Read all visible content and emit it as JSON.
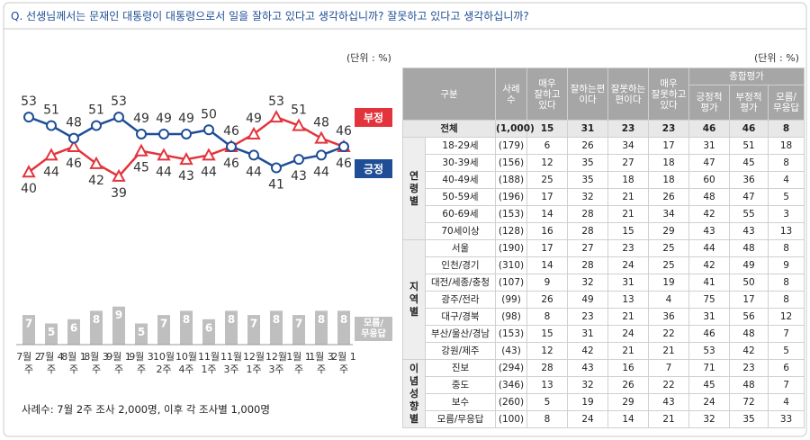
{
  "question": "Q. 선생님께서는 문재인 대통령이 대통령으로서 일을 잘하고 있다고 생각하십니까? 잘못하고 있다고 생각하십니까?",
  "chart_data": [
    {
      "type": "line",
      "unit": "(단위 : %)",
      "categories": [
        "7월 2주",
        "7월 4주",
        "8월 1주",
        "8월 3주",
        "9월 1주",
        "9월 3주",
        "10월 2주",
        "10월 4주",
        "11월 1주",
        "11월 3주",
        "12월 1주",
        "12월 3주",
        "1월 1주",
        "1월 3주",
        "2월 1주"
      ],
      "series": [
        {
          "name": "부정",
          "color": "#e3343c",
          "values": [
            40,
            44,
            46,
            42,
            39,
            45,
            44,
            43,
            44,
            46,
            49,
            53,
            51,
            48,
            46
          ]
        },
        {
          "name": "긍정",
          "color": "#1f4e96",
          "values": [
            53,
            51,
            48,
            51,
            53,
            49,
            49,
            49,
            50,
            46,
            44,
            41,
            43,
            44,
            46
          ]
        }
      ],
      "ylim": [
        36,
        59
      ]
    },
    {
      "type": "bar",
      "name": "모름/\n무응답",
      "color": "#bfbfbf",
      "values": [
        7,
        5,
        6,
        8,
        9,
        5,
        7,
        8,
        6,
        8,
        7,
        8,
        7,
        8,
        8
      ],
      "ylim": [
        0,
        10
      ]
    }
  ],
  "footnote": "사례수: 7월 2주 조사 2,000명, 이후 각 조사별 1,000명",
  "table": {
    "unit": "(단위 : %)",
    "header": {
      "group": "구분",
      "n": "사례\n수",
      "answers": [
        "매우\n잘하고\n있다",
        "잘하는편\n이다",
        "잘못하는\n편이다",
        "매우\n잘못하고\n있다"
      ],
      "summary": "종합평가",
      "summary_cols": [
        "긍정적\n평가",
        "부정적\n평가",
        "모름/\n무응답"
      ]
    },
    "total": {
      "label": "전체",
      "n": "(1,000)",
      "values": [
        15,
        31,
        23,
        23,
        46,
        46,
        8
      ]
    },
    "groups": [
      {
        "name": "연\n령\n별",
        "rows": [
          {
            "label": "18-29세",
            "n": "(179)",
            "values": [
              6,
              26,
              34,
              17,
              31,
              51,
              18
            ]
          },
          {
            "label": "30-39세",
            "n": "(156)",
            "values": [
              12,
              35,
              27,
              18,
              47,
              45,
              8
            ]
          },
          {
            "label": "40-49세",
            "n": "(188)",
            "values": [
              25,
              35,
              18,
              18,
              60,
              36,
              4
            ]
          },
          {
            "label": "50-59세",
            "n": "(196)",
            "values": [
              17,
              32,
              21,
              26,
              48,
              47,
              5
            ]
          },
          {
            "label": "60-69세",
            "n": "(153)",
            "values": [
              14,
              28,
              21,
              34,
              42,
              55,
              3
            ]
          },
          {
            "label": "70세이상",
            "n": "(128)",
            "values": [
              16,
              28,
              15,
              29,
              43,
              43,
              13
            ]
          }
        ]
      },
      {
        "name": "지\n역\n별",
        "rows": [
          {
            "label": "서울",
            "n": "(190)",
            "values": [
              17,
              27,
              23,
              25,
              44,
              48,
              8
            ]
          },
          {
            "label": "인천/경기",
            "n": "(310)",
            "values": [
              14,
              28,
              24,
              25,
              42,
              49,
              9
            ]
          },
          {
            "label": "대전/세종/충청",
            "n": "(107)",
            "values": [
              9,
              32,
              31,
              19,
              41,
              50,
              8
            ]
          },
          {
            "label": "광주/전라",
            "n": "(99)",
            "values": [
              26,
              49,
              13,
              4,
              75,
              17,
              8
            ]
          },
          {
            "label": "대구/경북",
            "n": "(98)",
            "values": [
              8,
              23,
              21,
              36,
              31,
              56,
              12
            ]
          },
          {
            "label": "부산/울산/경남",
            "n": "(153)",
            "values": [
              15,
              31,
              24,
              22,
              46,
              48,
              7
            ]
          },
          {
            "label": "강원/제주",
            "n": "(43)",
            "values": [
              12,
              42,
              21,
              21,
              53,
              42,
              5
            ]
          }
        ]
      },
      {
        "name": "이\n념\n성\n향\n별",
        "rows": [
          {
            "label": "진보",
            "n": "(294)",
            "values": [
              28,
              43,
              16,
              7,
              71,
              23,
              6
            ]
          },
          {
            "label": "중도",
            "n": "(346)",
            "values": [
              13,
              32,
              26,
              22,
              45,
              48,
              7
            ]
          },
          {
            "label": "보수",
            "n": "(260)",
            "values": [
              5,
              19,
              29,
              43,
              24,
              72,
              4
            ]
          },
          {
            "label": "모름/무응답",
            "n": "(100)",
            "values": [
              8,
              24,
              14,
              21,
              32,
              35,
              33
            ]
          }
        ]
      }
    ]
  }
}
